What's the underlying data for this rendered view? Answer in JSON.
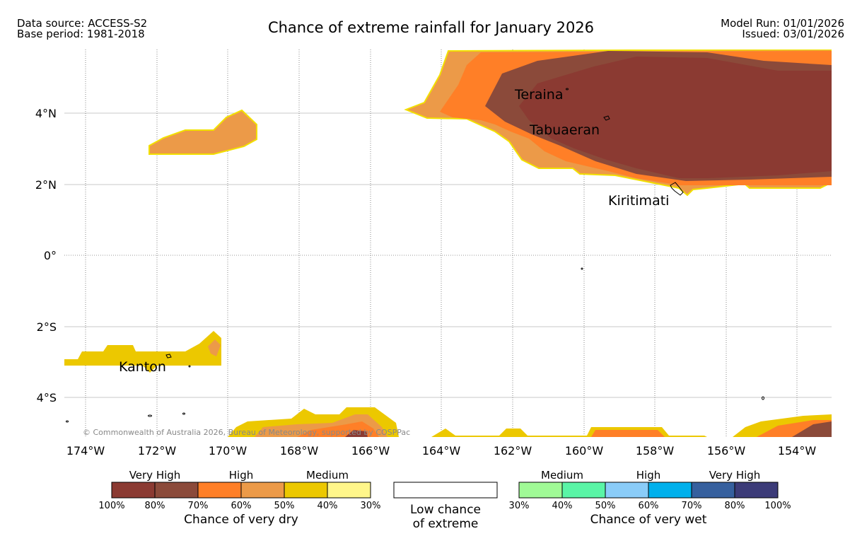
{
  "header": {
    "data_source": "Data source: ACCESS-S2",
    "base_period": "Base period: 1981-2018",
    "title": "Chance of extreme rainfall for January 2026",
    "model_run": "Model Run: 01/01/2026",
    "issued": "Issued: 03/01/2026"
  },
  "map": {
    "lat_labels": [
      "4°N",
      "2°N",
      "0°",
      "2°S",
      "4°S"
    ],
    "lon_labels": [
      "174°W",
      "172°W",
      "170°W",
      "168°W",
      "166°W",
      "164°W",
      "162°W",
      "160°W",
      "158°W",
      "156°W",
      "154°W"
    ],
    "places": [
      "Teraina",
      "Tabuaeran",
      "Kiritimati",
      "Kanton"
    ],
    "copyright": "© Commonwealth of Australia 2026, Bureau of Meteorology, supported by COSPPac"
  },
  "legend": {
    "dry": {
      "groups": [
        "Very High",
        "High",
        "Medium"
      ],
      "colors": [
        "#8b3a32",
        "#8b4a3a",
        "#ff7f27",
        "#ec9a48",
        "#ecc800",
        "#fff68a"
      ],
      "ticks": [
        "100%",
        "80%",
        "70%",
        "60%",
        "50%",
        "40%",
        "30%"
      ],
      "caption": "Chance of very dry"
    },
    "low": {
      "line1": "Low chance",
      "line2": "of extreme"
    },
    "wet": {
      "groups": [
        "Medium",
        "High",
        "Very High"
      ],
      "colors": [
        "#a0fa96",
        "#5af5a6",
        "#8accf8",
        "#00b0ec",
        "#36609e",
        "#3c3b78"
      ],
      "ticks": [
        "30%",
        "40%",
        "50%",
        "60%",
        "70%",
        "80%",
        "100%"
      ],
      "caption": "Chance of very wet"
    }
  }
}
